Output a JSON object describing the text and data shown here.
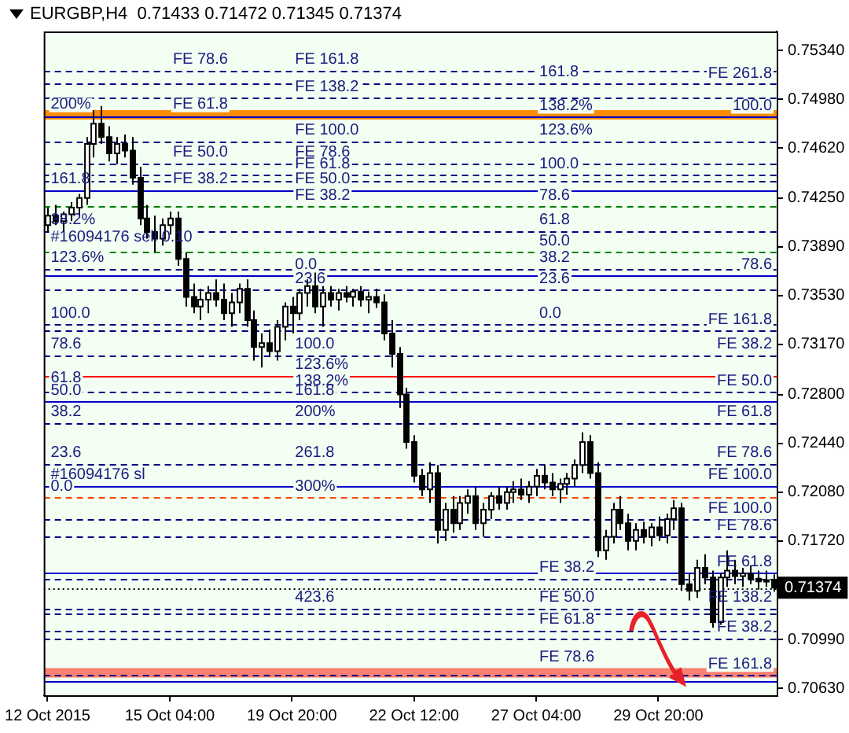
{
  "chart_data": {
    "type": "candlestick",
    "title": "EURGBP,H4  0.71433 0.71472 0.71345 0.71374",
    "categories": [
      "12 Oct 2015",
      null,
      null,
      null,
      null,
      null,
      null,
      null,
      null,
      null,
      null,
      null,
      null,
      null,
      null,
      null,
      "15 Oct 04:00",
      null,
      null,
      null,
      null,
      null,
      null,
      null,
      null,
      null,
      null,
      null,
      null,
      null,
      null,
      null,
      "19 Oct 20:00",
      null,
      null,
      null,
      null,
      null,
      null,
      null,
      null,
      null,
      null,
      null,
      null,
      null,
      null,
      null,
      "22 Oct 12:00",
      null,
      null,
      null,
      null,
      null,
      null,
      null,
      null,
      null,
      null,
      null,
      null,
      null,
      null,
      null,
      "27 Oct 04:00",
      null,
      null,
      null,
      null,
      null,
      null,
      null,
      null,
      null,
      null,
      null,
      null,
      null,
      null,
      null,
      "29 Oct 20:00",
      null,
      null,
      null,
      null,
      null,
      null,
      null,
      null,
      null,
      null,
      null,
      null,
      null,
      null,
      null
    ],
    "ohlc": [
      [
        0.7405,
        0.7418,
        0.74,
        0.7412
      ],
      [
        0.7412,
        0.742,
        0.7405,
        0.7408
      ],
      [
        0.7408,
        0.7415,
        0.74,
        0.7413
      ],
      [
        0.7413,
        0.7422,
        0.7408,
        0.7418
      ],
      [
        0.7418,
        0.7428,
        0.7412,
        0.7425
      ],
      [
        0.7425,
        0.747,
        0.742,
        0.7465
      ],
      [
        0.7465,
        0.749,
        0.7455,
        0.748
      ],
      [
        0.748,
        0.7493,
        0.7465,
        0.747
      ],
      [
        0.747,
        0.7478,
        0.7452,
        0.7458
      ],
      [
        0.7458,
        0.747,
        0.745,
        0.7465
      ],
      [
        0.7465,
        0.7472,
        0.7455,
        0.746
      ],
      [
        0.746,
        0.747,
        0.7435,
        0.744
      ],
      [
        0.744,
        0.7448,
        0.7405,
        0.741
      ],
      [
        0.741,
        0.742,
        0.7395,
        0.74
      ],
      [
        0.74,
        0.7412,
        0.7385,
        0.7395
      ],
      [
        0.7395,
        0.741,
        0.739,
        0.7405
      ],
      [
        0.7405,
        0.7415,
        0.7398,
        0.741
      ],
      [
        0.741,
        0.7415,
        0.7375,
        0.738
      ],
      [
        0.738,
        0.7385,
        0.7345,
        0.7352
      ],
      [
        0.7352,
        0.7362,
        0.734,
        0.7345
      ],
      [
        0.7345,
        0.7358,
        0.7335,
        0.735
      ],
      [
        0.735,
        0.736,
        0.734,
        0.7355
      ],
      [
        0.7355,
        0.7365,
        0.7345,
        0.735
      ],
      [
        0.735,
        0.7362,
        0.7335,
        0.734
      ],
      [
        0.734,
        0.7355,
        0.733,
        0.7348
      ],
      [
        0.7348,
        0.7362,
        0.734,
        0.7358
      ],
      [
        0.7358,
        0.7365,
        0.733,
        0.7335
      ],
      [
        0.7335,
        0.7342,
        0.7305,
        0.7315
      ],
      [
        0.7315,
        0.7325,
        0.73,
        0.7318
      ],
      [
        0.7318,
        0.7328,
        0.7308,
        0.7312
      ],
      [
        0.7312,
        0.7335,
        0.7305,
        0.733
      ],
      [
        0.733,
        0.7348,
        0.732,
        0.7345
      ],
      [
        0.7345,
        0.7352,
        0.7325,
        0.734
      ],
      [
        0.734,
        0.7358,
        0.7335,
        0.7355
      ],
      [
        0.7355,
        0.7365,
        0.7345,
        0.736
      ],
      [
        0.736,
        0.737,
        0.734,
        0.7345
      ],
      [
        0.7345,
        0.736,
        0.733,
        0.7355
      ],
      [
        0.7355,
        0.736,
        0.7345,
        0.735
      ],
      [
        0.735,
        0.7358,
        0.7342,
        0.7355
      ],
      [
        0.7355,
        0.736,
        0.7348,
        0.7352
      ],
      [
        0.7352,
        0.7358,
        0.7345,
        0.7356
      ],
      [
        0.7356,
        0.736,
        0.7345,
        0.735
      ],
      [
        0.735,
        0.7356,
        0.734,
        0.7352
      ],
      [
        0.7352,
        0.7358,
        0.7344,
        0.7348
      ],
      [
        0.7348,
        0.7354,
        0.732,
        0.7325
      ],
      [
        0.7325,
        0.7335,
        0.73,
        0.731
      ],
      [
        0.731,
        0.7315,
        0.727,
        0.728
      ],
      [
        0.728,
        0.7285,
        0.724,
        0.7245
      ],
      [
        0.7245,
        0.725,
        0.7215,
        0.722
      ],
      [
        0.722,
        0.7225,
        0.7205,
        0.721
      ],
      [
        0.721,
        0.723,
        0.72,
        0.7222
      ],
      [
        0.7222,
        0.7228,
        0.717,
        0.718
      ],
      [
        0.718,
        0.72,
        0.7172,
        0.7195
      ],
      [
        0.7195,
        0.7205,
        0.7178,
        0.7185
      ],
      [
        0.7185,
        0.7205,
        0.718,
        0.72
      ],
      [
        0.72,
        0.721,
        0.7192,
        0.7205
      ],
      [
        0.7205,
        0.7212,
        0.718,
        0.7185
      ],
      [
        0.7185,
        0.72,
        0.7175,
        0.7195
      ],
      [
        0.7195,
        0.7208,
        0.7188,
        0.7205
      ],
      [
        0.7205,
        0.7212,
        0.7195,
        0.72
      ],
      [
        0.72,
        0.7212,
        0.7195,
        0.7208
      ],
      [
        0.7208,
        0.7216,
        0.72,
        0.721
      ],
      [
        0.721,
        0.7218,
        0.7202,
        0.7206
      ],
      [
        0.7206,
        0.7216,
        0.72,
        0.7212
      ],
      [
        0.7212,
        0.7225,
        0.7205,
        0.722
      ],
      [
        0.722,
        0.7228,
        0.721,
        0.7215
      ],
      [
        0.7215,
        0.7222,
        0.7205,
        0.721
      ],
      [
        0.721,
        0.7218,
        0.72,
        0.7214
      ],
      [
        0.7214,
        0.7222,
        0.7206,
        0.7218
      ],
      [
        0.7218,
        0.7232,
        0.7212,
        0.7228
      ],
      [
        0.7228,
        0.7252,
        0.7222,
        0.7245
      ],
      [
        0.7245,
        0.725,
        0.7218,
        0.7222
      ],
      [
        0.7222,
        0.723,
        0.716,
        0.7165
      ],
      [
        0.7165,
        0.718,
        0.7158,
        0.7175
      ],
      [
        0.7175,
        0.72,
        0.717,
        0.7195
      ],
      [
        0.7195,
        0.7205,
        0.718,
        0.7185
      ],
      [
        0.7185,
        0.7192,
        0.7165,
        0.7172
      ],
      [
        0.7172,
        0.7185,
        0.7165,
        0.718
      ],
      [
        0.718,
        0.7186,
        0.717,
        0.7175
      ],
      [
        0.7175,
        0.7185,
        0.7168,
        0.7182
      ],
      [
        0.7182,
        0.719,
        0.7172,
        0.7176
      ],
      [
        0.7176,
        0.7192,
        0.717,
        0.7188
      ],
      [
        0.7188,
        0.7202,
        0.718,
        0.7196
      ],
      [
        0.7196,
        0.72,
        0.7135,
        0.714
      ],
      [
        0.714,
        0.7148,
        0.7128,
        0.7135
      ],
      [
        0.7135,
        0.7158,
        0.713,
        0.7152
      ],
      [
        0.7152,
        0.7162,
        0.714,
        0.7145
      ],
      [
        0.7145,
        0.715,
        0.7108,
        0.7112
      ],
      [
        0.7112,
        0.7148,
        0.711,
        0.7145
      ],
      [
        0.7145,
        0.7165,
        0.7138,
        0.715
      ],
      [
        0.715,
        0.7158,
        0.714,
        0.7146
      ],
      [
        0.7146,
        0.7152,
        0.7138,
        0.7148
      ],
      [
        0.7148,
        0.7154,
        0.714,
        0.7144
      ],
      [
        0.7144,
        0.715,
        0.7136,
        0.7142
      ],
      [
        0.7142,
        0.715,
        0.7138,
        0.7143
      ],
      [
        0.71433,
        0.71472,
        0.71345,
        0.71374
      ]
    ],
    "ylim": [
      0.7058,
      0.7548
    ],
    "yticks": [
      {
        "value": 0.7534,
        "label": "0.75340"
      },
      {
        "value": 0.7498,
        "label": "0.74980"
      },
      {
        "value": 0.7462,
        "label": "0.74620"
      },
      {
        "value": 0.7425,
        "label": "0.74250"
      },
      {
        "value": 0.7389,
        "label": "0.73890"
      },
      {
        "value": 0.7353,
        "label": "0.73530"
      },
      {
        "value": 0.7317,
        "label": "0.73170"
      },
      {
        "value": 0.728,
        "label": "0.72800"
      },
      {
        "value": 0.7244,
        "label": "0.72440"
      },
      {
        "value": 0.7208,
        "label": "0.72080"
      },
      {
        "value": 0.7172,
        "label": "0.71720"
      },
      {
        "value": 0.7099,
        "label": "0.70990"
      },
      {
        "value": 0.7063,
        "label": "0.70630"
      }
    ],
    "bands": [
      {
        "axis": "y",
        "from": 0.7483,
        "to": 0.749,
        "color": "#ff8c00"
      },
      {
        "axis": "y",
        "from": 0.7071,
        "to": 0.7078,
        "color": "#fa8072"
      }
    ],
    "ref_lines": [
      {
        "axis": "y",
        "value": 0.7519,
        "color": "#000080",
        "line_style": "dashed"
      },
      {
        "axis": "y",
        "value": 0.751,
        "color": "#000080",
        "line_style": "dashed"
      },
      {
        "axis": "y",
        "value": 0.7499,
        "color": "#000080",
        "line_style": "dashed"
      },
      {
        "axis": "y",
        "value": 0.7485,
        "color": "#0000cd",
        "line_style": "solid"
      },
      {
        "axis": "y",
        "value": 0.7467,
        "color": "#000080",
        "line_style": "dashed"
      },
      {
        "axis": "y",
        "value": 0.7451,
        "color": "#000080",
        "line_style": "dashed"
      },
      {
        "axis": "y",
        "value": 0.7442,
        "color": "#000080",
        "line_style": "dashed"
      },
      {
        "axis": "y",
        "value": 0.7438,
        "color": "#000080",
        "line_style": "dashed"
      },
      {
        "axis": "y",
        "value": 0.7431,
        "color": "#0000cd",
        "line_style": "solid"
      },
      {
        "axis": "y",
        "value": 0.7419,
        "color": "#008000",
        "line_style": "dashed"
      },
      {
        "axis": "y",
        "value": 0.7401,
        "color": "#000080",
        "line_style": "dashed"
      },
      {
        "axis": "y",
        "value": 0.7385,
        "color": "#008000",
        "line_style": "dashed"
      },
      {
        "axis": "y",
        "value": 0.7373,
        "color": "#000080",
        "line_style": "dashed"
      },
      {
        "axis": "y",
        "value": 0.7368,
        "color": "#0000cd",
        "line_style": "solid"
      },
      {
        "axis": "y",
        "value": 0.7357,
        "color": "#000080",
        "line_style": "dashed"
      },
      {
        "axis": "y",
        "value": 0.7332,
        "color": "#000080",
        "line_style": "dashed"
      },
      {
        "axis": "y",
        "value": 0.7327,
        "color": "#000080",
        "line_style": "dashed"
      },
      {
        "axis": "y",
        "value": 0.7309,
        "color": "#000080",
        "line_style": "dashed"
      },
      {
        "axis": "y",
        "value": 0.7294,
        "color": "#ff0000",
        "line_style": "solid"
      },
      {
        "axis": "y",
        "value": 0.7282,
        "color": "#000080",
        "line_style": "dashed"
      },
      {
        "axis": "y",
        "value": 0.7275,
        "color": "#0000cd",
        "line_style": "solid"
      },
      {
        "axis": "y",
        "value": 0.7259,
        "color": "#000080",
        "line_style": "dashed"
      },
      {
        "axis": "y",
        "value": 0.7229,
        "color": "#000080",
        "line_style": "dashed"
      },
      {
        "axis": "y",
        "value": 0.7213,
        "color": "#0000cd",
        "line_style": "solid"
      },
      {
        "axis": "y",
        "value": 0.7204,
        "color": "#ff4500",
        "line_style": "dashed"
      },
      {
        "axis": "y",
        "value": 0.7188,
        "color": "#000080",
        "line_style": "dashed"
      },
      {
        "axis": "y",
        "value": 0.7175,
        "color": "#000080",
        "line_style": "dashed"
      },
      {
        "axis": "y",
        "value": 0.7148,
        "color": "#0000cd",
        "line_style": "solid"
      },
      {
        "axis": "y",
        "value": 0.7144,
        "color": "#000080",
        "line_style": "dashed"
      },
      {
        "axis": "y",
        "value": 0.7122,
        "color": "#000080",
        "line_style": "dashed"
      },
      {
        "axis": "y",
        "value": 0.7118,
        "color": "#000080",
        "line_style": "dashed"
      },
      {
        "axis": "y",
        "value": 0.7106,
        "color": "#000080",
        "line_style": "dashed"
      },
      {
        "axis": "y",
        "value": 0.71,
        "color": "#000080",
        "line_style": "dashed"
      },
      {
        "axis": "y",
        "value": 0.7073,
        "color": "#000080",
        "line_style": "dashed"
      },
      {
        "axis": "y",
        "value": 0.7069,
        "color": "#0000cd",
        "line_style": "solid"
      },
      {
        "axis": "y",
        "value": 0.71374,
        "label": "0.71374",
        "color": "#000000",
        "line_style": "dotted"
      }
    ],
    "annotations": [
      {
        "text": "200%",
        "x": "12 Oct 2015",
        "y": 0.7486
      },
      {
        "text": "161.8",
        "x": "12 Oct 2015",
        "y": 0.7431
      },
      {
        "text": "38.2%",
        "x": "12 Oct 2015",
        "y": 0.7401
      },
      {
        "text": "#16094176 sell 0.10",
        "x": "12 Oct 2015",
        "y": 0.7388
      },
      {
        "text": "123.6%",
        "x": "12 Oct 2015",
        "y": 0.7373
      },
      {
        "text": "100.0",
        "x": "12 Oct 2015",
        "y": 0.7332
      },
      {
        "text": "78.6",
        "x": "12 Oct 2015",
        "y": 0.7309
      },
      {
        "text": "61.8",
        "x": "12 Oct 2015",
        "y": 0.7284
      },
      {
        "text": "50.0",
        "x": "12 Oct 2015",
        "y": 0.7275
      },
      {
        "text": "38.2",
        "x": "12 Oct 2015",
        "y": 0.7259
      },
      {
        "text": "23.6",
        "x": "12 Oct 2015",
        "y": 0.7229
      },
      {
        "text": "#16094176 sl",
        "x": "12 Oct 2015",
        "y": 0.7213
      },
      {
        "text": "0.0",
        "x": "12 Oct 2015",
        "y": 0.7204
      },
      {
        "text": "FE 78.6",
        "x": "15 Oct 04:00",
        "y": 0.7519
      },
      {
        "text": "FE 61.8",
        "x": "15 Oct 04:00",
        "y": 0.7486
      },
      {
        "text": "FE 50.0",
        "x": "15 Oct 04:00",
        "y": 0.7451
      },
      {
        "text": "FE 38.2",
        "x": "15 Oct 04:00",
        "y": 0.7431
      },
      {
        "text": "FE 161.8",
        "x": "19 Oct 20:00",
        "y": 0.7519
      },
      {
        "text": "FE 138.2",
        "x": "19 Oct 20:00",
        "y": 0.7499
      },
      {
        "text": "FE 100.0",
        "x": "19 Oct 20:00",
        "y": 0.7467
      },
      {
        "text": "FE 78.6",
        "x": "19 Oct 20:00",
        "y": 0.7451
      },
      {
        "text": "FE 61.8",
        "x": "19 Oct 20:00",
        "y": 0.7442
      },
      {
        "text": "FE 50.0",
        "x": "19 Oct 20:00",
        "y": 0.7431
      },
      {
        "text": "FE 38.2",
        "x": "19 Oct 20:00",
        "y": 0.7419
      },
      {
        "text": "0.0",
        "x": "19 Oct 20:00",
        "y": 0.7368
      },
      {
        "text": "23.6",
        "x": "19 Oct 20:00",
        "y": 0.7357
      },
      {
        "text": "100.0",
        "x": "19 Oct 20:00",
        "y": 0.7309
      },
      {
        "text": "123.6%",
        "x": "19 Oct 20:00",
        "y": 0.7294
      },
      {
        "text": "138.2%",
        "x": "19 Oct 20:00",
        "y": 0.7282
      },
      {
        "text": "161.8",
        "x": "19 Oct 20:00",
        "y": 0.7275
      },
      {
        "text": "200%",
        "x": "19 Oct 20:00",
        "y": 0.7259
      },
      {
        "text": "261.8",
        "x": "19 Oct 20:00",
        "y": 0.7229
      },
      {
        "text": "300%",
        "x": "19 Oct 20:00",
        "y": 0.7204
      },
      {
        "text": "423.6",
        "x": "19 Oct 20:00",
        "y": 0.7122
      },
      {
        "text": "161.8",
        "x": "27 Oct 04:00",
        "y": 0.751
      },
      {
        "text": "138.2%",
        "x": "27 Oct 04:00",
        "y": 0.7485
      },
      {
        "text": "123.6%",
        "x": "27 Oct 04:00",
        "y": 0.7467
      },
      {
        "text": "100.0",
        "x": "27 Oct 04:00",
        "y": 0.7442
      },
      {
        "text": "78.6",
        "x": "27 Oct 04:00",
        "y": 0.7419
      },
      {
        "text": "61.8",
        "x": "27 Oct 04:00",
        "y": 0.7401
      },
      {
        "text": "50.0",
        "x": "27 Oct 04:00",
        "y": 0.7385
      },
      {
        "text": "38.2",
        "x": "27 Oct 04:00",
        "y": 0.7373
      },
      {
        "text": "23.6",
        "x": "27 Oct 04:00",
        "y": 0.7357
      },
      {
        "text": "0.0",
        "x": "27 Oct 04:00",
        "y": 0.7332
      },
      {
        "text": "FE 38.2",
        "x": "27 Oct 04:00",
        "y": 0.7144
      },
      {
        "text": "FE 50.0",
        "x": "27 Oct 04:00",
        "y": 0.7122
      },
      {
        "text": "FE 61.8",
        "x": "27 Oct 04:00",
        "y": 0.7106
      },
      {
        "text": "FE 78.6",
        "x": "27 Oct 04:00",
        "y": 0.7078
      },
      {
        "text": "FE 261.8",
        "y": 0.7509
      },
      {
        "text": "100.0",
        "y": 0.7485
      },
      {
        "text": "78.6",
        "y": 0.7368
      },
      {
        "text": "FE 161.8",
        "y": 0.7327
      },
      {
        "text": "FE 38.2",
        "y": 0.7309
      },
      {
        "text": "FE 50.0",
        "y": 0.7282
      },
      {
        "text": "FE 61.8",
        "y": 0.7259
      },
      {
        "text": "FE 78.6",
        "y": 0.7229
      },
      {
        "text": "FE 100.0",
        "y": 0.7213
      },
      {
        "text": "FE 100.0",
        "y": 0.7188
      },
      {
        "text": "FE 78.6",
        "y": 0.7175
      },
      {
        "text": "FE 61.8",
        "y": 0.7148
      },
      {
        "text": "FE 138.2",
        "y": 0.7122
      },
      {
        "text": "FE 38.2",
        "y": 0.71
      },
      {
        "text": "FE 161.8",
        "y": 0.7073
      }
    ]
  }
}
